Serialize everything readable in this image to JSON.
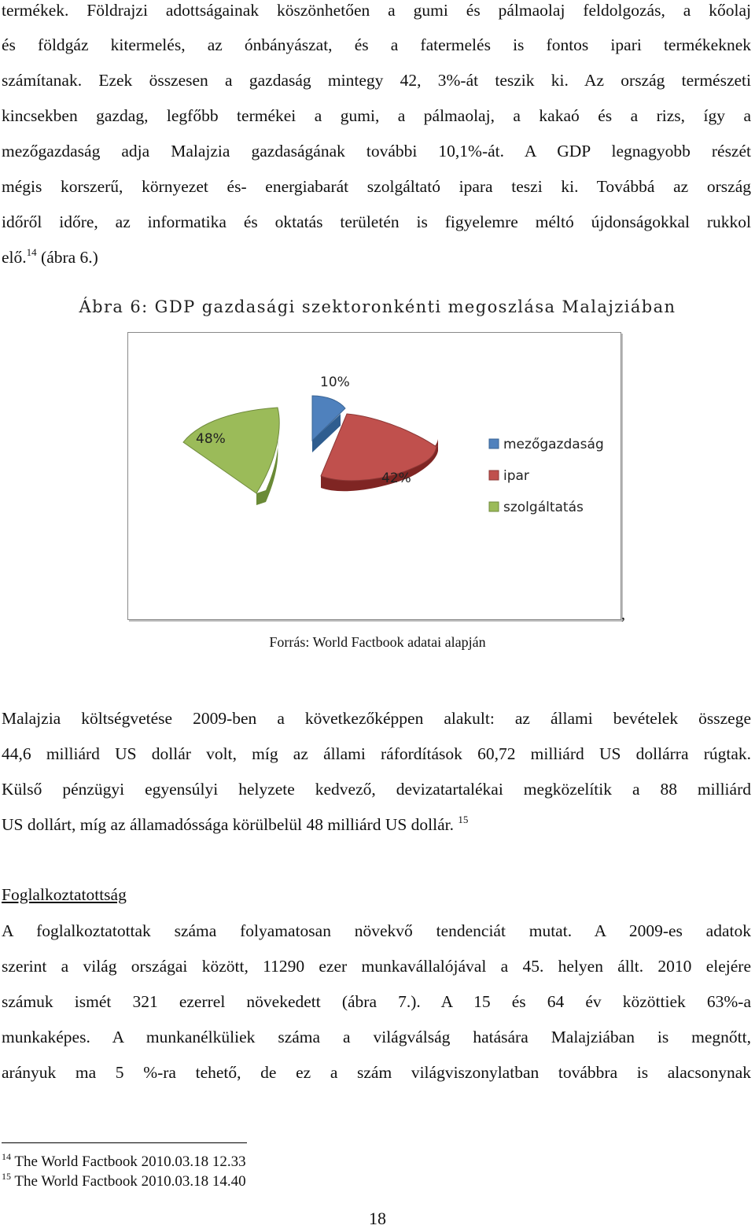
{
  "intro_lines": [
    "termékek. Földrajzi adottságainak köszönhetően a gumi és pálmaolaj feldolgozás, a kőolaj",
    "és földgáz kitermelés, az ónbányászat, és a fatermelés is fontos ipari termékeknek",
    "számítanak. Ezek összesen a gazdaság mintegy 42, 3%-át teszik ki. Az ország természeti",
    "kincsekben gazdag, legfőbb termékei a gumi, a pálmaolaj, a kakaó és a rizs, így a",
    "mezőgazdaság adja Malajzia gazdaságának további 10,1%-át. A GDP legnagyobb részét",
    "mégis korszerű, környezet és- energiabarát szolgáltató ipara teszi ki. Továbbá az ország",
    "időről időre, az informatika és oktatás területén is figyelemre méltó újdonságokkal rukkol"
  ],
  "intro_last": {
    "before": "elő.",
    "sup": "14",
    "after": "(ábra 6.)"
  },
  "figure_caption": "Ábra 6: GDP gazdasági szektoronkénti megoszlása Malajziában",
  "chart_data": {
    "type": "pie",
    "categories": [
      "mezőgazdaság",
      "ipar",
      "szolgáltatás"
    ],
    "values": [
      10,
      42,
      48
    ],
    "labels": [
      "10%",
      "42%",
      "48%"
    ],
    "colors": [
      "#4f81bd",
      "#c0504d",
      "#9bbb59"
    ],
    "legend_position": "right",
    "exploded": true,
    "style": "3d"
  },
  "trailing_comma": ",",
  "source": "Forrás: World Factbook adatai alapján",
  "budget_lines": [
    "Malajzia költségvetése 2009-ben a következőképpen alakult: az állami bevételek összege",
    "44,6 milliárd US dollár volt, míg az állami ráfordítások 60,72 milliárd US dollárra rúgtak.",
    "Külső pénzügyi egyensúlyi helyzete kedvező, devizatartalékai megközelítik a 88 milliárd"
  ],
  "budget_last": {
    "before": "US dollárt, míg az államadóssága körülbelül 48 milliárd US dollár.",
    "sup": "15"
  },
  "section_heading": "Foglalkoztatottság",
  "employment_lines": [
    "A foglalkoztatottak száma folyamatosan növekvő tendenciát mutat. A 2009-es adatok",
    "szerint a világ országai között, 11290 ezer munkavállalójával a 45. helyen állt. 2010 elejére",
    "számuk ismét 321 ezerrel növekedett (ábra 7.).  A 15 és 64 év közöttiek 63%-a",
    "munkaképes. A munkanélküliek száma a világválság hatására Malajziában is megnőtt,",
    "arányuk ma 5 %-ra tehető, de ez a szám világviszonylatban továbbra is alacsonynak"
  ],
  "footnotes": [
    {
      "num": "14",
      "text": "The World Factbook 2010.03.18 12.33"
    },
    {
      "num": "15",
      "text": "The World Factbook 2010.03.18 14.40"
    }
  ],
  "page_number": "18"
}
